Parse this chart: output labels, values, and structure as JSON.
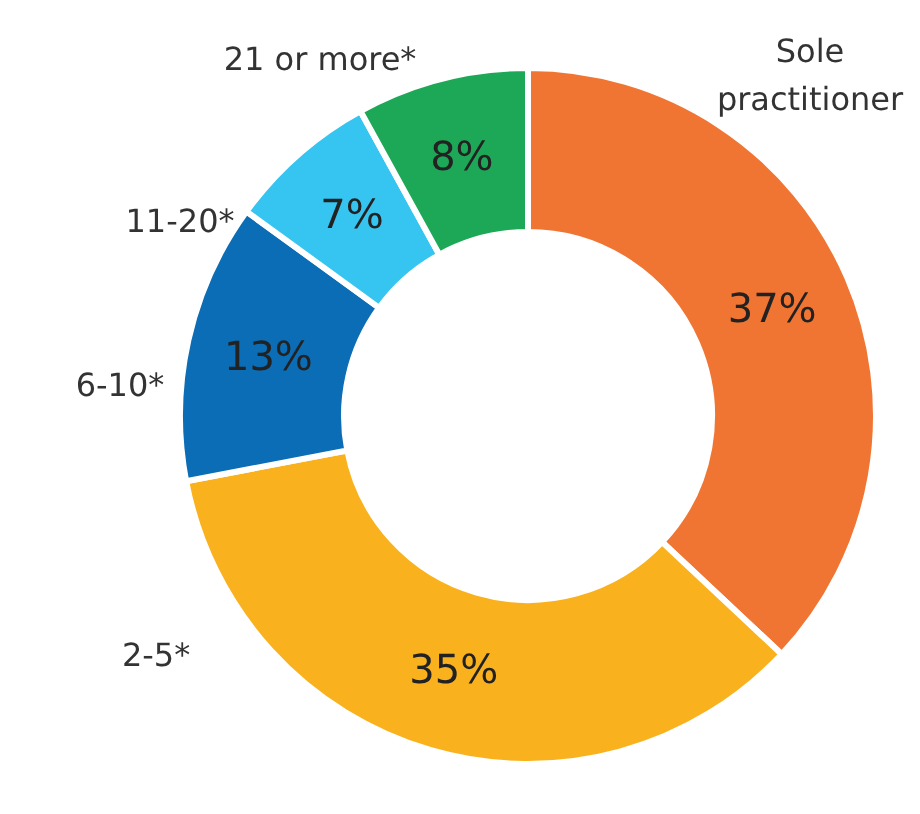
{
  "chart_data": {
    "type": "donut",
    "categories": [
      "Sole practitioner",
      "2-5*",
      "6-10*",
      "11-20*",
      "21 or more*"
    ],
    "values": [
      37,
      35,
      13,
      7,
      8
    ],
    "colors": [
      "#f07533",
      "#f9b21e",
      "#0b6db5",
      "#35c5f0",
      "#1da857"
    ],
    "value_labels": [
      "37%",
      "35%",
      "13%",
      "7%",
      "8%"
    ]
  }
}
